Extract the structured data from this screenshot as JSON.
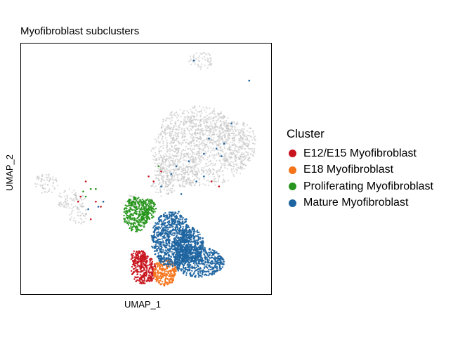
{
  "chart_data": {
    "type": "scatter",
    "title": "Myofibroblast subclusters",
    "xlabel": "UMAP_1",
    "ylabel": "UMAP_2",
    "xlim": [
      0,
      100
    ],
    "ylim": [
      0,
      100
    ],
    "grid": false,
    "axis_ticks": false,
    "background_cells_color": "#bebebe",
    "legend": {
      "title": "Cluster",
      "position": "right"
    },
    "series": [
      {
        "name": "E12/E15 Myofibroblast",
        "color": "#c8141e",
        "regions": [
          {
            "cx": 49,
            "cy": 10,
            "rx": 5,
            "ry": 6
          },
          {
            "cx": 47,
            "cy": 15,
            "rx": 3,
            "ry": 3
          }
        ],
        "outliers": [
          [
            26,
            45
          ],
          [
            30,
            37
          ],
          [
            24,
            39
          ],
          [
            32,
            35
          ],
          [
            51,
            47
          ],
          [
            53,
            45
          ],
          [
            23,
            37
          ],
          [
            28,
            30
          ],
          [
            56,
            49
          ],
          [
            76,
            45
          ],
          [
            79,
            43
          ]
        ]
      },
      {
        "name": "E18 Myofibroblast",
        "color": "#f57319",
        "regions": [
          {
            "cx": 57.5,
            "cy": 9,
            "rx": 4.5,
            "ry": 5.5
          }
        ],
        "outliers": []
      },
      {
        "name": "Proliferating Myofibroblast",
        "color": "#28961e",
        "regions": [
          {
            "cx": 46,
            "cy": 32,
            "rx": 5,
            "ry": 7
          },
          {
            "cx": 51,
            "cy": 34,
            "rx": 3,
            "ry": 4
          }
        ],
        "outliers": [
          [
            28,
            42
          ],
          [
            25,
            41
          ],
          [
            30,
            42
          ],
          [
            55,
            51
          ],
          [
            26,
            39
          ]
        ]
      },
      {
        "name": "Mature Myofibroblast",
        "color": "#1e64a0",
        "regions": [
          {
            "cx": 60,
            "cy": 22,
            "rx": 8,
            "ry": 11
          },
          {
            "cx": 71,
            "cy": 13,
            "rx": 10,
            "ry": 6
          },
          {
            "cx": 67,
            "cy": 20,
            "rx": 6,
            "ry": 7
          }
        ],
        "outliers": [
          [
            62,
            51
          ],
          [
            67,
            53
          ],
          [
            73,
            56
          ],
          [
            78,
            58
          ],
          [
            81,
            60
          ],
          [
            60,
            48
          ],
          [
            64,
            40
          ],
          [
            56,
            43
          ],
          [
            84,
            68
          ],
          [
            91,
            85
          ],
          [
            63,
            33
          ],
          [
            66,
            30
          ],
          [
            70,
            45
          ],
          [
            75,
            62
          ],
          [
            69,
            93
          ],
          [
            31,
            35
          ],
          [
            33,
            37
          ],
          [
            27,
            34
          ],
          [
            73,
            47
          ],
          [
            80,
            55
          ]
        ]
      }
    ],
    "background_regions": [
      {
        "cx": 72,
        "cy": 57,
        "rx": 20,
        "ry": 14
      },
      {
        "cx": 70,
        "cy": 67,
        "rx": 14,
        "ry": 8
      },
      {
        "cx": 62,
        "cy": 50,
        "rx": 9,
        "ry": 8
      },
      {
        "cx": 86,
        "cy": 60,
        "rx": 8,
        "ry": 9
      },
      {
        "cx": 57,
        "cy": 44,
        "rx": 5,
        "ry": 5
      },
      {
        "cx": 72,
        "cy": 93,
        "rx": 5,
        "ry": 3.5
      },
      {
        "cx": 10,
        "cy": 44,
        "rx": 5,
        "ry": 4
      },
      {
        "cx": 20,
        "cy": 38,
        "rx": 6,
        "ry": 4
      },
      {
        "cx": 23,
        "cy": 32,
        "rx": 4,
        "ry": 4
      },
      {
        "cx": 45,
        "cy": 37,
        "rx": 3,
        "ry": 3
      }
    ]
  }
}
